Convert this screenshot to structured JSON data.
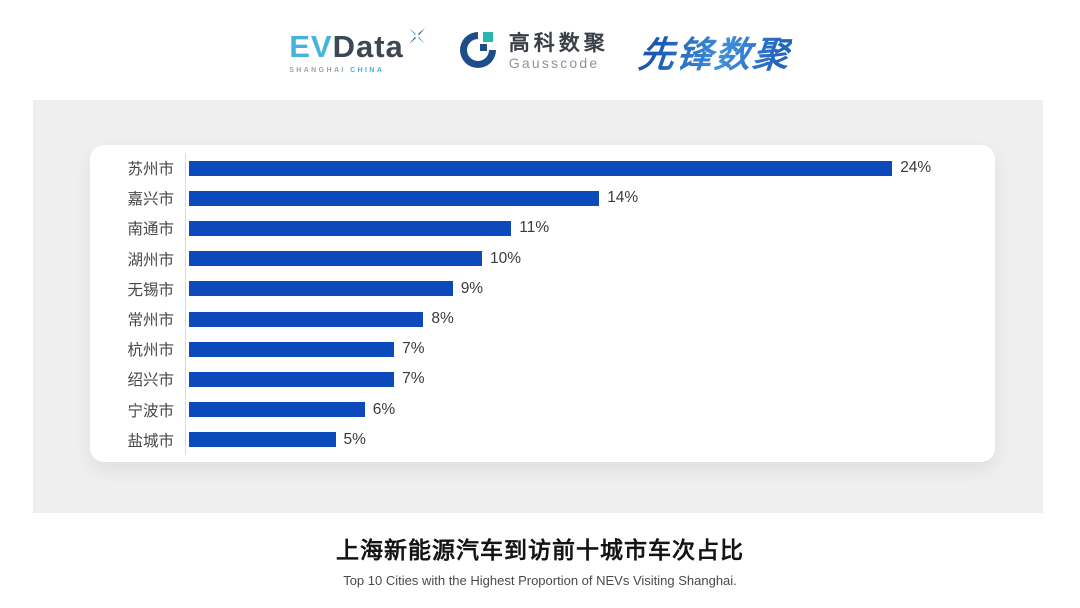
{
  "header": {
    "evdata": {
      "ev": "EV",
      "data": "Data",
      "sub_left": "SHANGHAI",
      "sub_right": "CHINA",
      "accent_color": "#45b3dc",
      "dark_color": "#3d4854"
    },
    "gausscode": {
      "cn": "高科数聚",
      "en": "Gausscode",
      "mark_color": "#1d4e89",
      "mark_accent": "#2bb5b0"
    },
    "xianfeng": {
      "text": "先锋数聚",
      "color": "#2b6fc9"
    }
  },
  "chart_data": {
    "type": "bar",
    "orientation": "horizontal",
    "title": "上海新能源汽车到访前十城市车次占比",
    "subtitle": "Top 10 Cities with the Highest Proportion of NEVs Visiting Shanghai.",
    "categories": [
      "苏州市",
      "嘉兴市",
      "南通市",
      "湖州市",
      "无锡市",
      "常州市",
      "杭州市",
      "绍兴市",
      "宁波市",
      "盐城市"
    ],
    "values": [
      24,
      14,
      11,
      10,
      9,
      8,
      7,
      7,
      6,
      5
    ],
    "value_labels": [
      "24%",
      "14%",
      "11%",
      "10%",
      "9%",
      "8%",
      "7%",
      "7%",
      "6%",
      "5%"
    ],
    "bar_color": "#0c4abb",
    "xlim": [
      0,
      25
    ],
    "grid": false,
    "legend": false,
    "axis_line_color": "#dcdcdc"
  }
}
